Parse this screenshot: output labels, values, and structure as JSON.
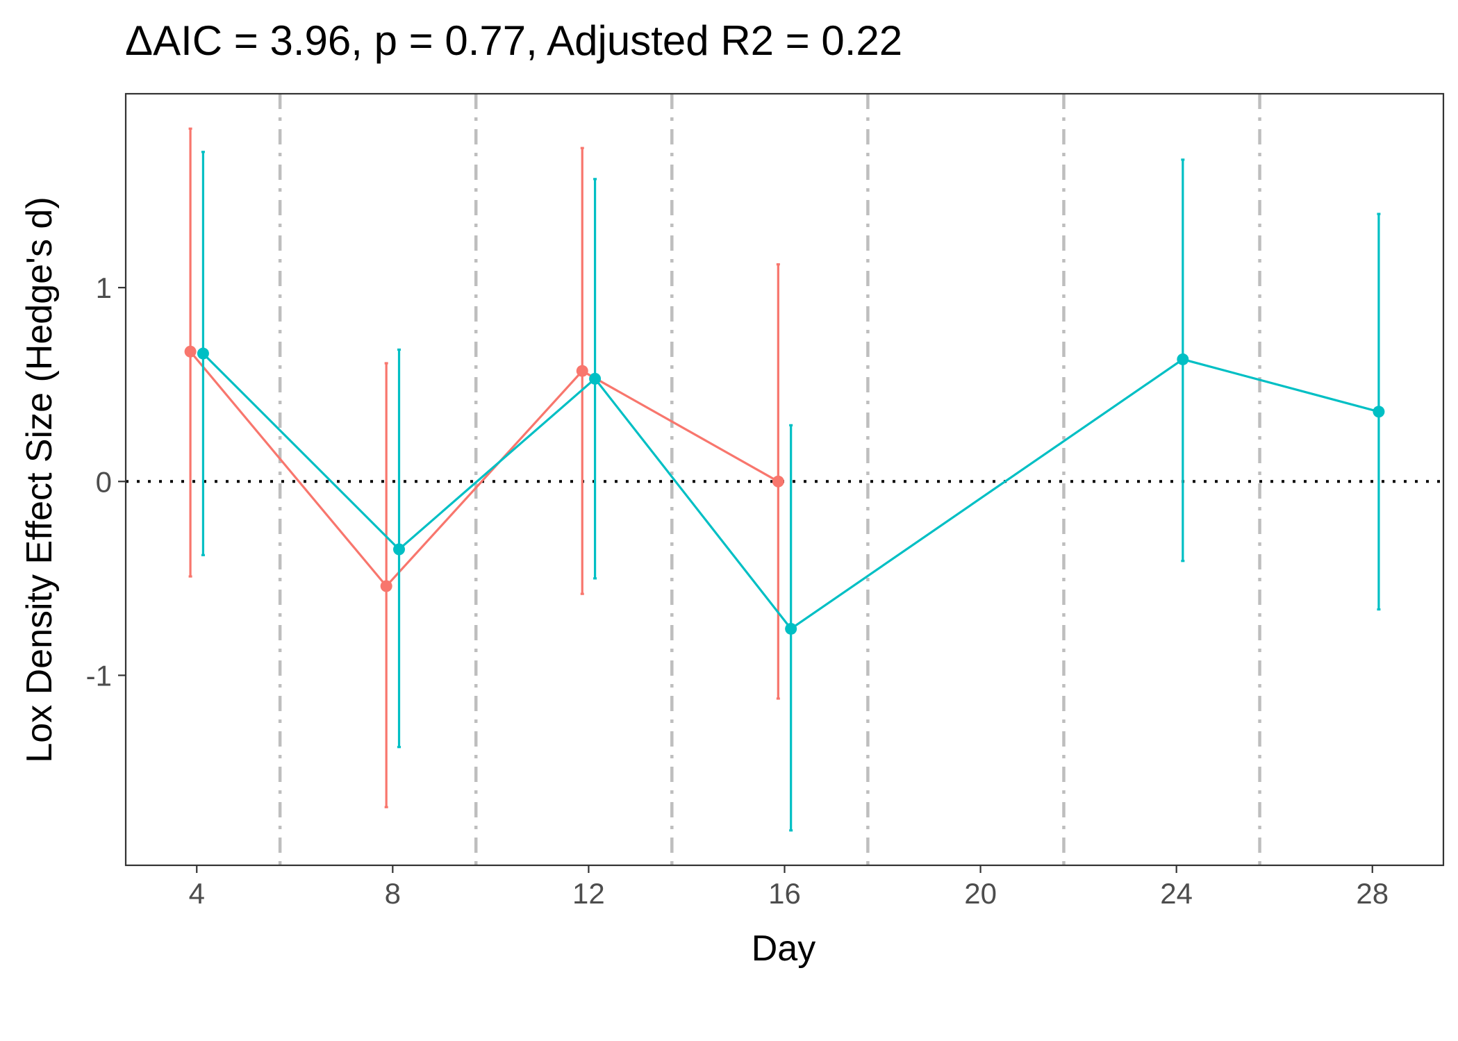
{
  "chart_data": {
    "type": "line",
    "title": "ΔAIC = 3.96, p = 0.77, Adjusted R2 = 0.22",
    "xlabel": "Day",
    "ylabel": "Lox Density Effect Size (Hedge's d)",
    "xlim": [
      2.55,
      29.45
    ],
    "ylim": [
      -1.98,
      2.0
    ],
    "x_ticks": [
      4,
      8,
      12,
      16,
      20,
      24,
      28
    ],
    "x_tick_labels": [
      "4",
      "8",
      "12",
      "16",
      "20",
      "24",
      "28"
    ],
    "y_ticks": [
      -1,
      0,
      1
    ],
    "y_tick_labels": [
      "-1",
      "0",
      "1"
    ],
    "grid": false,
    "legend": "none",
    "reference_lines": {
      "horizontal_dotted_y": 0,
      "vertical_dashdot_x": [
        5.7,
        9.7,
        13.7,
        17.7,
        21.7,
        25.7
      ]
    },
    "series": [
      {
        "color": "#F8766D",
        "points": [
          {
            "x": 3.87,
            "y": 0.67,
            "lower": -0.49,
            "upper": 1.82
          },
          {
            "x": 7.87,
            "y": -0.54,
            "lower": -1.68,
            "upper": 0.61
          },
          {
            "x": 11.87,
            "y": 0.57,
            "lower": -0.58,
            "upper": 1.72
          },
          {
            "x": 15.87,
            "y": 0.0,
            "lower": -1.12,
            "upper": 1.12
          }
        ]
      },
      {
        "color": "#00BFC4",
        "points": [
          {
            "x": 4.13,
            "y": 0.66,
            "lower": -0.38,
            "upper": 1.7
          },
          {
            "x": 8.13,
            "y": -0.35,
            "lower": -1.37,
            "upper": 0.68
          },
          {
            "x": 12.13,
            "y": 0.53,
            "lower": -0.5,
            "upper": 1.56
          },
          {
            "x": 16.13,
            "y": -0.76,
            "lower": -1.8,
            "upper": 0.29
          },
          {
            "x": 24.13,
            "y": 0.63,
            "lower": -0.41,
            "upper": 1.66
          },
          {
            "x": 28.13,
            "y": 0.36,
            "lower": -0.66,
            "upper": 1.38
          }
        ]
      }
    ]
  }
}
